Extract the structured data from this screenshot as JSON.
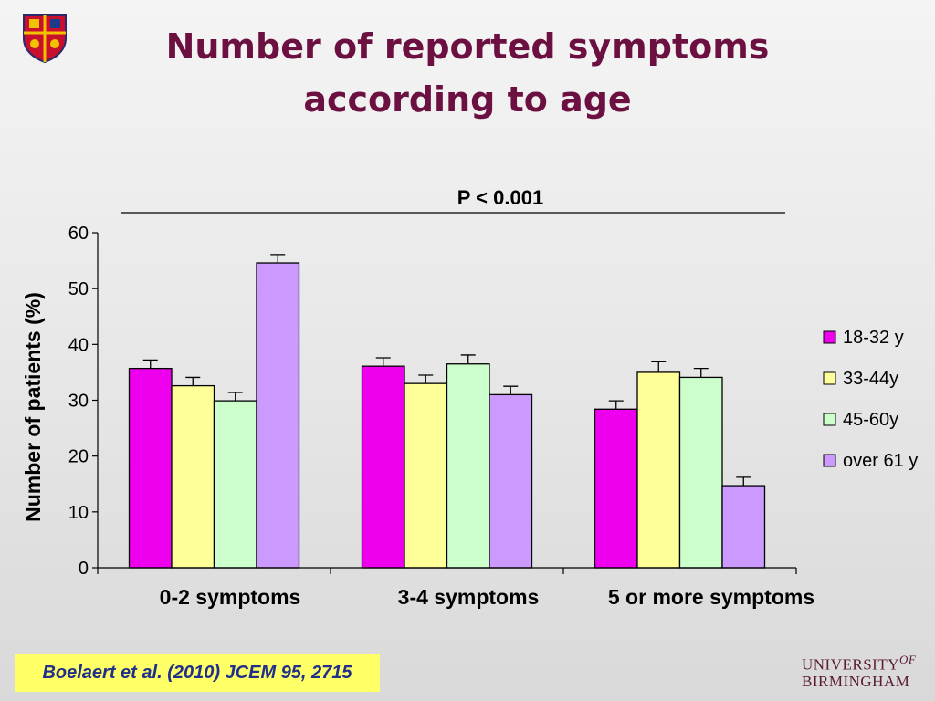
{
  "slide": {
    "title_line1": "Number of reported symptoms",
    "title_line2": "according to age",
    "citation": "Boelaert et al. (2010) JCEM 95, 2715",
    "logo_line1": "UNIVERSITY",
    "logo_of": "OF",
    "logo_line2": "BIRMINGHAM"
  },
  "colors": {
    "title": "#6b1040",
    "citation_bg": "#ffff66",
    "citation_text": "#1f2f8a"
  },
  "chart_data": {
    "type": "bar",
    "annotation": "P < 0.001",
    "ylabel": "Number of patients (%)",
    "xlabel": "",
    "ylim": [
      0,
      60
    ],
    "yticks": [
      0,
      10,
      20,
      30,
      40,
      50,
      60
    ],
    "categories": [
      "0-2 symptoms",
      "3-4 symptoms",
      "5 or more symptoms"
    ],
    "series": [
      {
        "name": "18-32 y",
        "color": "#ee00ee",
        "values": [
          35.7,
          36.1,
          28.4
        ],
        "errors": [
          1.5,
          1.5,
          1.5
        ]
      },
      {
        "name": "33-44y",
        "color": "#ffff99",
        "values": [
          32.6,
          33.0,
          35.0
        ],
        "errors": [
          1.5,
          1.5,
          1.9
        ]
      },
      {
        "name": "45-60y",
        "color": "#ccffcc",
        "values": [
          29.9,
          36.5,
          34.1
        ],
        "errors": [
          1.5,
          1.6,
          1.6
        ]
      },
      {
        "name": "over 61 y",
        "color": "#cc99ff",
        "values": [
          54.6,
          31.0,
          14.7
        ],
        "errors": [
          1.5,
          1.5,
          1.5
        ]
      }
    ],
    "legend_position": "right",
    "grid": false
  }
}
